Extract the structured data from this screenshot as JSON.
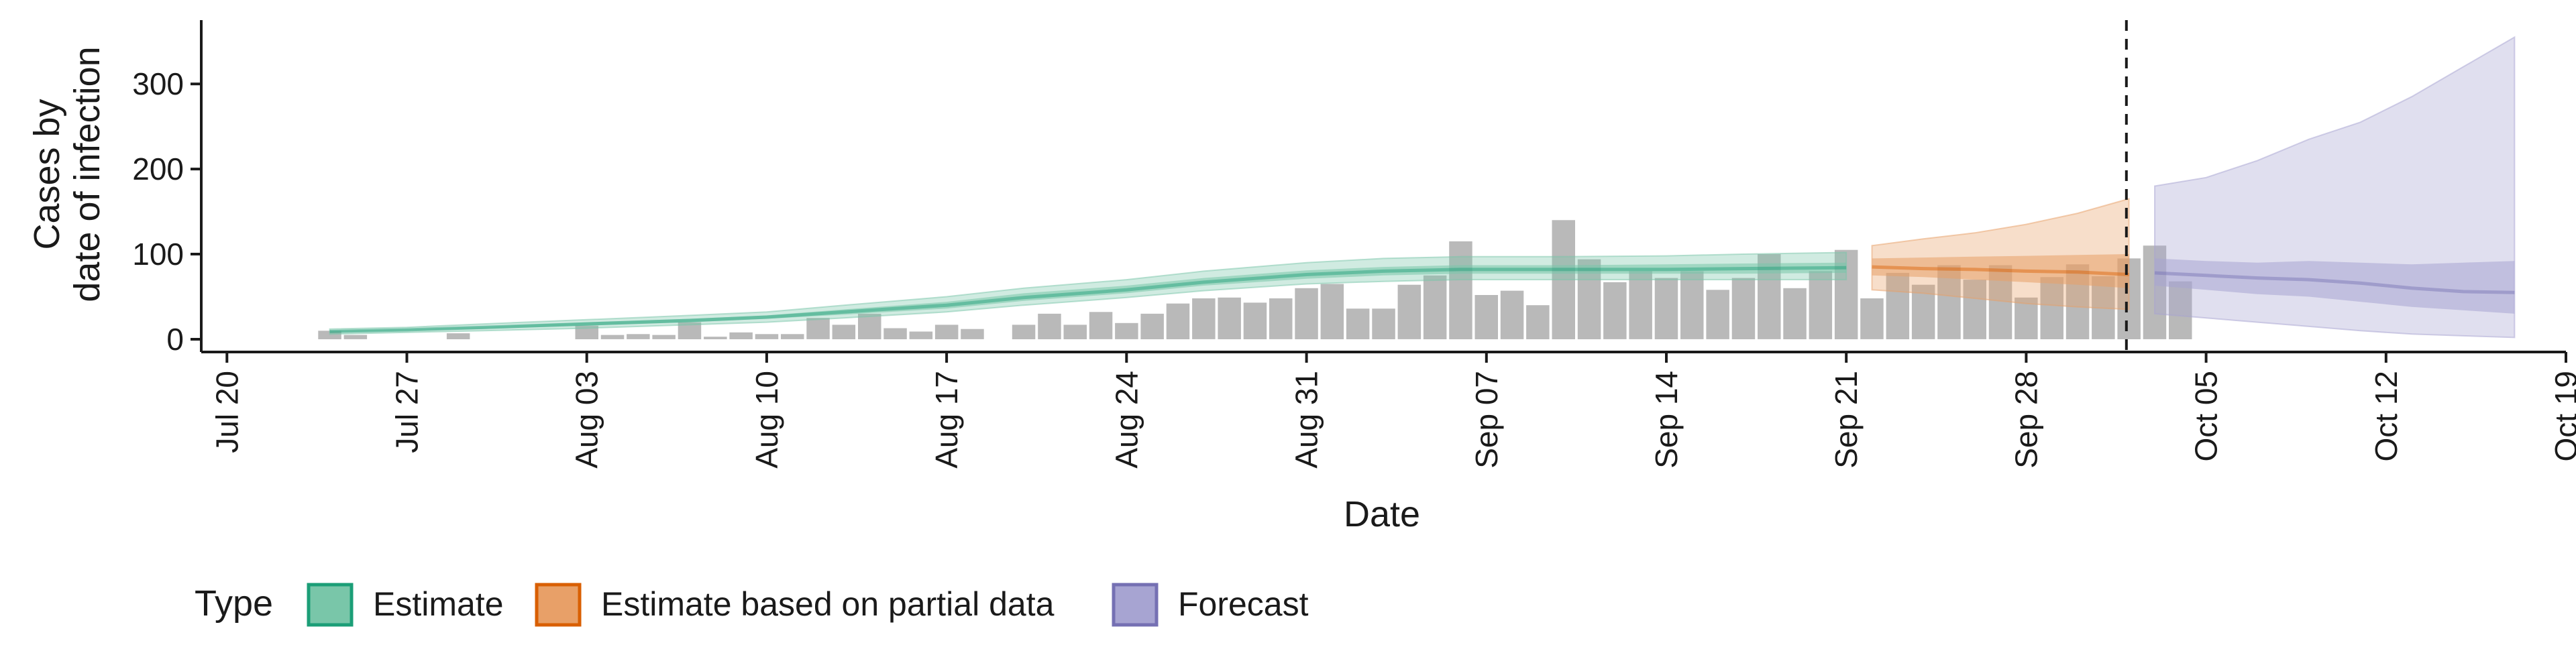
{
  "chart_data": {
    "type": "bar+area",
    "title": "",
    "xlabel": "Date",
    "ylabel_lines": [
      "Cases by",
      "date of infection"
    ],
    "ylim": [
      -15,
      375
    ],
    "yticks": [
      0,
      100,
      200,
      300
    ],
    "x_domain_days": [
      -1,
      91
    ],
    "x_origin_date": "Jul 20",
    "x_ticks": [
      {
        "day": 0,
        "label": "Jul 20"
      },
      {
        "day": 7,
        "label": "Jul 27"
      },
      {
        "day": 14,
        "label": "Aug 03"
      },
      {
        "day": 21,
        "label": "Aug 10"
      },
      {
        "day": 28,
        "label": "Aug 17"
      },
      {
        "day": 35,
        "label": "Aug 24"
      },
      {
        "day": 42,
        "label": "Aug 31"
      },
      {
        "day": 49,
        "label": "Sep 07"
      },
      {
        "day": 56,
        "label": "Sep 14"
      },
      {
        "day": 63,
        "label": "Sep 21"
      },
      {
        "day": 70,
        "label": "Sep 28"
      },
      {
        "day": 77,
        "label": "Oct 05"
      },
      {
        "day": 84,
        "label": "Oct 12"
      },
      {
        "day": 91,
        "label": "Oct 19"
      }
    ],
    "vline_day": 73.9,
    "bars": {
      "start_day": 4,
      "values": [
        10,
        5,
        0,
        0,
        0,
        7,
        0,
        0,
        0,
        0,
        16,
        5,
        6,
        5,
        20,
        3,
        8,
        6,
        6,
        25,
        17,
        30,
        13,
        9,
        17,
        12,
        0,
        17,
        30,
        17,
        32,
        19,
        30,
        42,
        48,
        49,
        43,
        48,
        60,
        65,
        36,
        36,
        64,
        75,
        115,
        52,
        57,
        40,
        140,
        94,
        67,
        80,
        72,
        80,
        58,
        72,
        100,
        60,
        80,
        105,
        48,
        78,
        64,
        87,
        70,
        87,
        49,
        73,
        88,
        74,
        95,
        110,
        68
      ]
    },
    "series": [
      {
        "name": "Estimate",
        "color": "#1b9e77",
        "fill": "#79c6a9",
        "days": [
          4,
          7,
          10,
          14,
          18,
          21,
          24,
          28,
          31,
          35,
          38,
          42,
          45,
          48,
          52,
          56,
          59,
          63
        ],
        "median": [
          9,
          11,
          14,
          18,
          22,
          26,
          32,
          40,
          49,
          58,
          67,
          76,
          80,
          82,
          82,
          82,
          83,
          84
        ],
        "lower50": [
          8,
          10,
          12,
          16,
          20,
          24,
          29,
          36,
          45,
          54,
          63,
          71,
          75,
          77,
          77,
          77,
          77,
          78
        ],
        "upper50": [
          10,
          12,
          15,
          20,
          24,
          28,
          35,
          44,
          54,
          63,
          72,
          81,
          85,
          87,
          87,
          88,
          89,
          90
        ],
        "lower90": [
          6,
          8,
          10,
          13,
          17,
          20,
          25,
          32,
          40,
          49,
          57,
          65,
          68,
          70,
          70,
          70,
          70,
          70
        ],
        "upper90": [
          12,
          14,
          18,
          23,
          28,
          32,
          40,
          50,
          60,
          70,
          80,
          90,
          95,
          97,
          97,
          98,
          100,
          102
        ]
      },
      {
        "name": "Estimate based on partial data",
        "color": "#d95f02",
        "fill": "#e8a068",
        "days": [
          64,
          66,
          68,
          70,
          72,
          74
        ],
        "median": [
          85,
          83,
          82,
          80,
          79,
          76
        ],
        "lower50": [
          75,
          73,
          70,
          67,
          64,
          60
        ],
        "upper50": [
          95,
          96,
          97,
          98,
          99,
          100
        ],
        "lower90": [
          58,
          54,
          48,
          42,
          38,
          35
        ],
        "upper90": [
          110,
          118,
          125,
          135,
          148,
          165
        ]
      },
      {
        "name": "Forecast",
        "color": "#7570b3",
        "fill": "#a7a4d2",
        "days": [
          75,
          77,
          79,
          81,
          83,
          85,
          87,
          89
        ],
        "median": [
          78,
          75,
          72,
          70,
          66,
          60,
          56,
          55
        ],
        "lower50": [
          63,
          58,
          53,
          50,
          44,
          38,
          34,
          30
        ],
        "upper50": [
          95,
          92,
          90,
          92,
          90,
          88,
          90,
          92
        ],
        "lower90": [
          30,
          25,
          20,
          15,
          10,
          6,
          4,
          2
        ],
        "upper90": [
          180,
          190,
          210,
          235,
          255,
          285,
          320,
          355
        ]
      }
    ],
    "legend": {
      "position": "bottom",
      "title": "Type",
      "items": [
        {
          "label": "Estimate",
          "fill": "#79c6a9",
          "stroke": "#1b9e77"
        },
        {
          "label": "Estimate based on partial data",
          "fill": "#e8a068",
          "stroke": "#d95f02"
        },
        {
          "label": "Forecast",
          "fill": "#a7a4d2",
          "stroke": "#7570b3"
        }
      ]
    },
    "bar_color": "#9e9e9e"
  }
}
